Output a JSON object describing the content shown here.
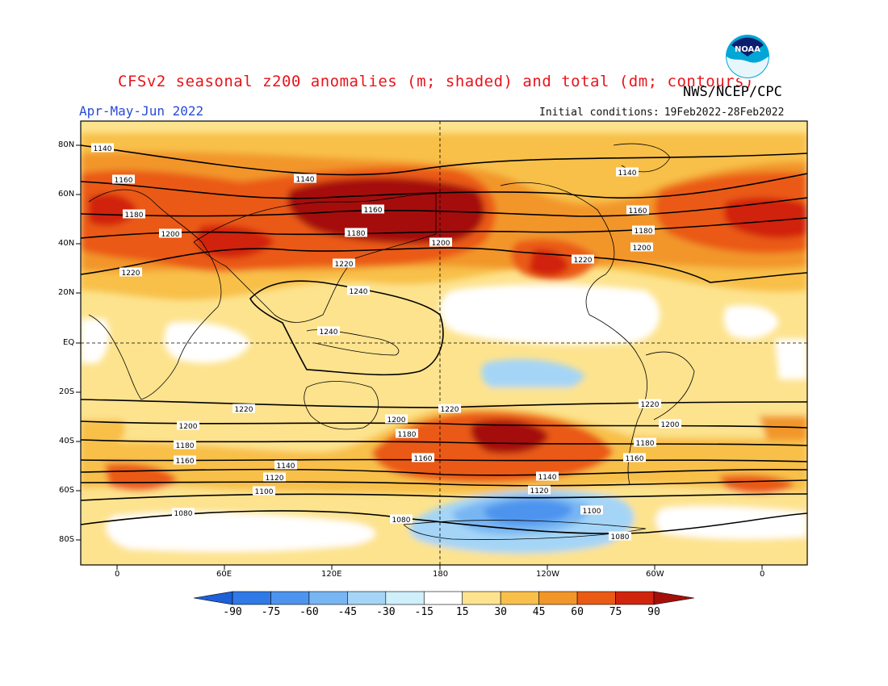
{
  "header": {
    "title": "CFSv2 seasonal z200 anomalies (m; shaded) and total (dm; contours)",
    "agency": "NWS/NCEP/CPC",
    "season": "Apr-May-Jun 2022",
    "ic_label": "Initial conditions:",
    "ic_range": "19Feb2022-28Feb2022",
    "logo_text": "NOAA"
  },
  "axes": {
    "lat_labels": [
      "80N",
      "60N",
      "40N",
      "20N",
      "EQ",
      "20S",
      "40S",
      "60S",
      "80S"
    ],
    "lon_labels": [
      "0",
      "60E",
      "120E",
      "180",
      "120W",
      "60W",
      "0"
    ]
  },
  "colorbar": {
    "levels": [
      "-90",
      "-75",
      "-60",
      "-45",
      "-30",
      "-15",
      "15",
      "30",
      "45",
      "60",
      "75",
      "90"
    ],
    "colors": [
      "#1f5fd8",
      "#2f7ae6",
      "#4d94ee",
      "#78b6f3",
      "#a5d5f6",
      "#cfeffa",
      "#ffffff",
      "#fde38e",
      "#f8c04a",
      "#f2962a",
      "#ea5a14",
      "#d1240c",
      "#a50f0a"
    ]
  },
  "contour_labels": [
    "1140",
    "1140",
    "1140",
    "1160",
    "1160",
    "1160",
    "1180",
    "1180",
    "1180",
    "1200",
    "1200",
    "1200",
    "1220",
    "1220",
    "1220",
    "1240",
    "1240",
    "1220",
    "1220",
    "1220",
    "1200",
    "1200",
    "1200",
    "1180",
    "1180",
    "1180",
    "1160",
    "1160",
    "1160",
    "1140",
    "1140",
    "1120",
    "1120",
    "1100",
    "1100",
    "1080",
    "1080",
    "1080"
  ]
}
